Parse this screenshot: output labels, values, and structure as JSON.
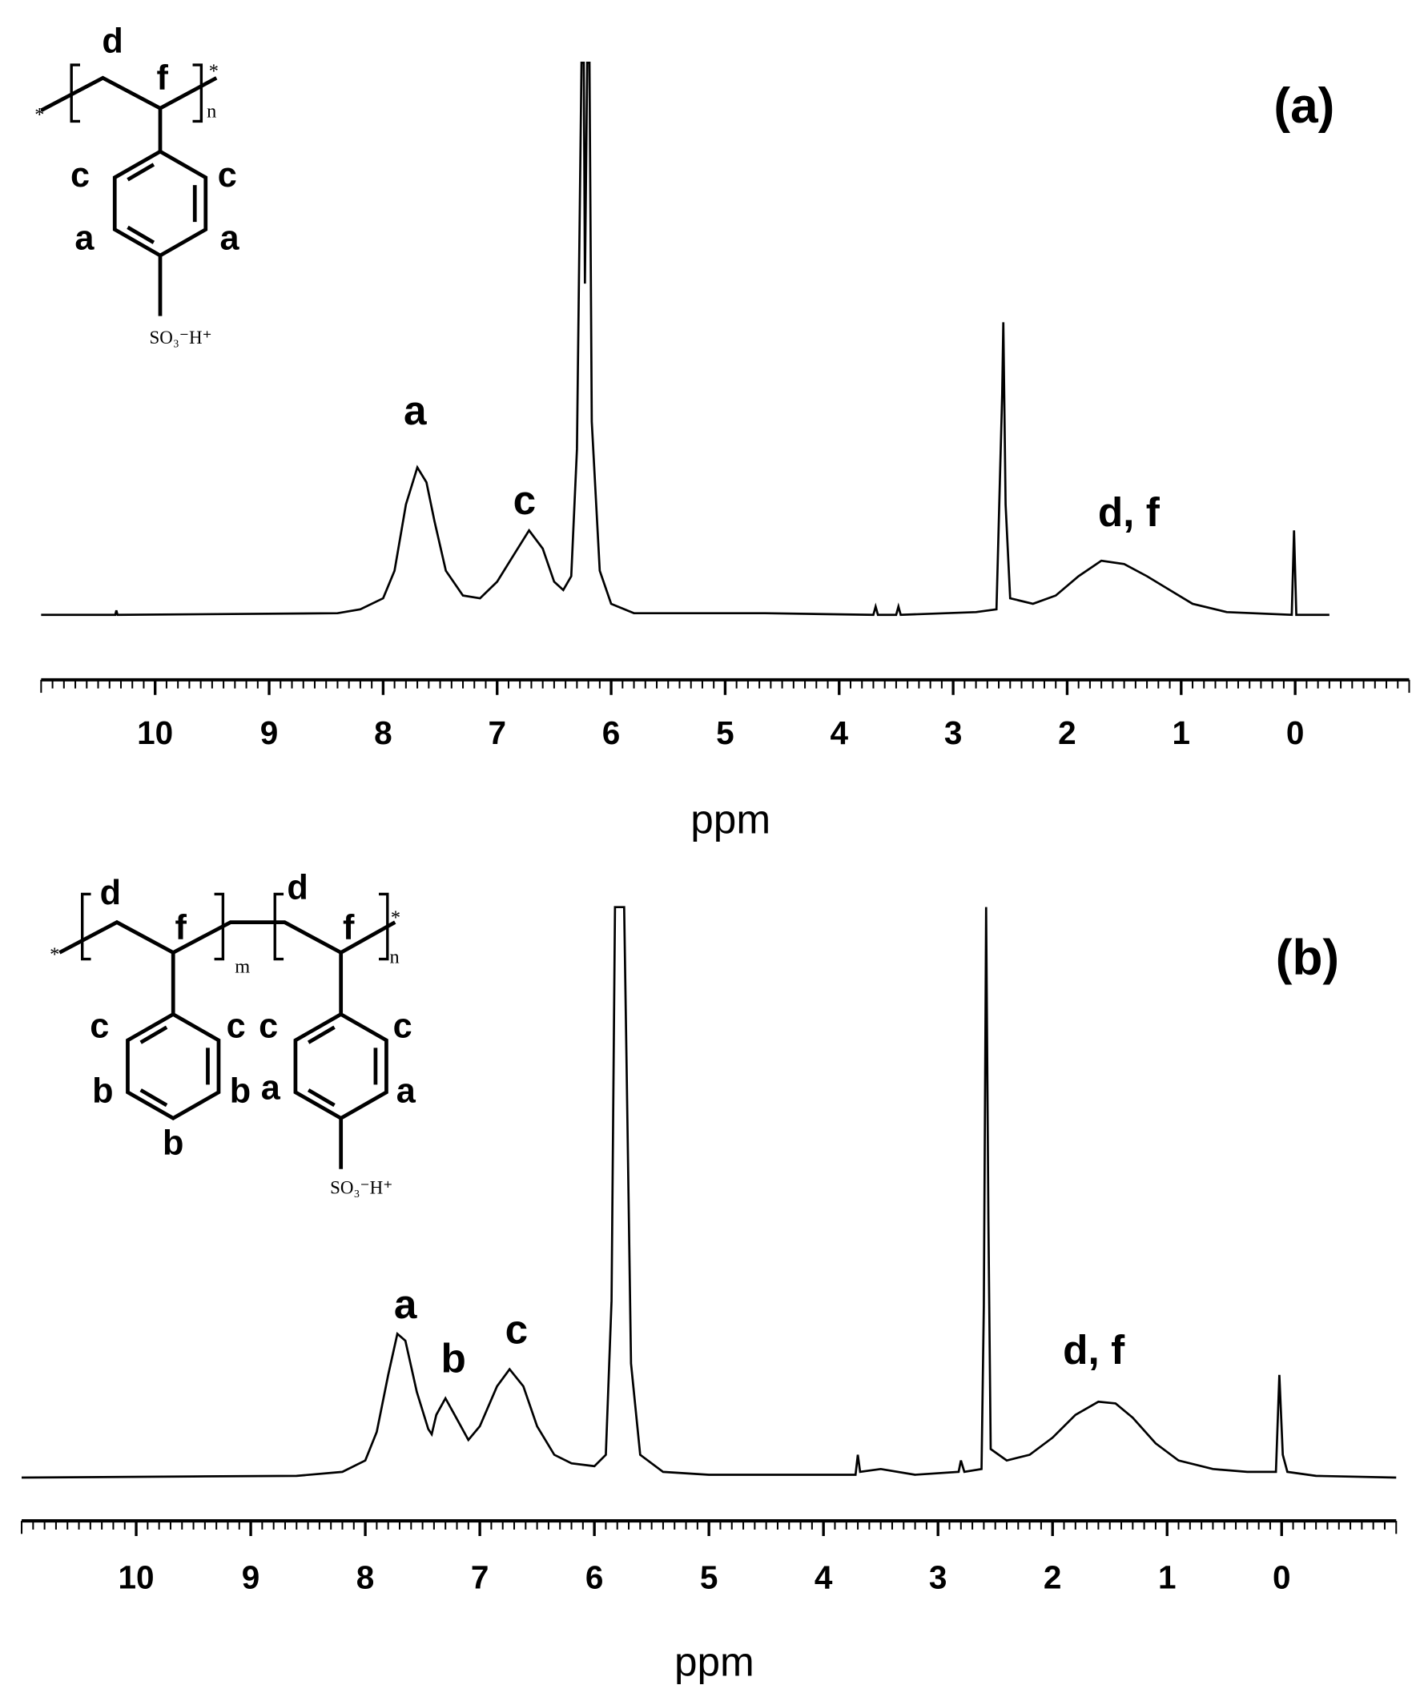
{
  "chart_data": [
    {
      "type": "line",
      "title": "(a)",
      "x_label": "ppm",
      "color": "#000000",
      "xlim": [
        11,
        -1
      ],
      "xticks": [
        10,
        9,
        8,
        7,
        6,
        5,
        4,
        3,
        2,
        1,
        0
      ],
      "ylim": [
        0,
        100
      ],
      "x": [
        11,
        10.35,
        10.34,
        10.33,
        8.4,
        8.2,
        8.0,
        7.9,
        7.8,
        7.7,
        7.62,
        7.55,
        7.45,
        7.3,
        7.15,
        7.0,
        6.85,
        6.72,
        6.6,
        6.5,
        6.42,
        6.35,
        6.3,
        6.26,
        6.24,
        6.23,
        6.21,
        6.19,
        6.17,
        6.1,
        6.0,
        5.8,
        4.65,
        3.7,
        3.68,
        3.66,
        3.5,
        3.48,
        3.46,
        2.8,
        2.62,
        2.57,
        2.56,
        2.54,
        2.5,
        2.3,
        2.1,
        1.9,
        1.7,
        1.5,
        1.3,
        1.1,
        0.9,
        0.6,
        0.03,
        0.01,
        -0.01,
        -0.3
      ],
      "values": [
        0,
        0,
        0.8,
        0,
        0.3,
        1,
        3,
        8,
        20,
        26.7,
        24,
        17,
        8,
        3.5,
        3,
        6,
        11,
        15.3,
        12,
        6,
        4.5,
        7,
        30,
        100,
        100,
        60,
        100,
        100,
        35,
        8,
        2,
        0.3,
        0.3,
        0,
        1.5,
        0,
        0,
        1.5,
        0,
        0.5,
        1,
        40,
        53,
        20,
        3,
        2,
        3.5,
        7,
        9.8,
        9.2,
        7,
        4.5,
        2,
        0.5,
        0,
        15.3,
        0,
        0
      ],
      "annotations": [
        {
          "text": "a",
          "x": 7.72,
          "y": 37
        },
        {
          "text": "c",
          "x": 6.76,
          "y": 20.8
        },
        {
          "text": "d, f",
          "x": 1.46,
          "y": 18.6
        }
      ]
    },
    {
      "type": "line",
      "title": "(b)",
      "x_label": "ppm",
      "color": "#000000",
      "xlim": [
        11,
        -1
      ],
      "xticks": [
        10,
        9,
        8,
        7,
        6,
        5,
        4,
        3,
        2,
        1,
        0
      ],
      "ylim": [
        0,
        100
      ],
      "x": [
        11,
        9.5,
        8.6,
        8.2,
        8.0,
        7.9,
        7.8,
        7.72,
        7.65,
        7.55,
        7.45,
        7.42,
        7.38,
        7.3,
        7.22,
        7.1,
        7.0,
        6.85,
        6.74,
        6.62,
        6.5,
        6.35,
        6.2,
        6.0,
        5.9,
        5.85,
        5.82,
        5.79,
        5.77,
        5.74,
        5.72,
        5.68,
        5.6,
        5.4,
        5.0,
        4.0,
        3.72,
        3.7,
        3.68,
        3.5,
        3.2,
        2.82,
        2.8,
        2.77,
        2.62,
        2.6,
        2.58,
        2.56,
        2.54,
        2.4,
        2.2,
        2.0,
        1.8,
        1.6,
        1.45,
        1.3,
        1.1,
        0.9,
        0.6,
        0.3,
        0.05,
        0.02,
        -0.01,
        -0.05,
        -0.3,
        -1
      ],
      "values": [
        0,
        0.2,
        0.3,
        1,
        3,
        8,
        18,
        25.2,
        24,
        15,
        8.5,
        7.6,
        11,
        13.9,
        11,
        6.6,
        9,
        16,
        19,
        16,
        9,
        4,
        2.5,
        2,
        4,
        31,
        100,
        100,
        100,
        100,
        74,
        20,
        4,
        1,
        0.5,
        0.5,
        0.5,
        4,
        1,
        1.5,
        0.5,
        1,
        3,
        1,
        1.5,
        30,
        100,
        45,
        5,
        3,
        4,
        7,
        11,
        13.3,
        13,
        10.5,
        6,
        3,
        1.5,
        1,
        1,
        18,
        4,
        1,
        0.3,
        0
      ],
      "annotations": [
        {
          "text": "a",
          "x": 7.65,
          "y": 30.4
        },
        {
          "text": "b",
          "x": 7.23,
          "y": 20.9
        },
        {
          "text": "c",
          "x": 6.68,
          "y": 26
        },
        {
          "text": "d, f",
          "x": 1.64,
          "y": 22.4
        }
      ]
    }
  ],
  "structures": [
    {
      "labels": [
        "*",
        "d",
        "f",
        "n",
        "*",
        "c",
        "c",
        "a",
        "a",
        "SO₃⁻H⁺"
      ]
    },
    {
      "labels": [
        "*",
        "d",
        "f",
        "m",
        "d",
        "f",
        "n",
        "*",
        "c",
        "c",
        "b",
        "b",
        "b",
        "c",
        "c",
        "a",
        "a",
        "SO₃⁻H⁺"
      ]
    }
  ]
}
